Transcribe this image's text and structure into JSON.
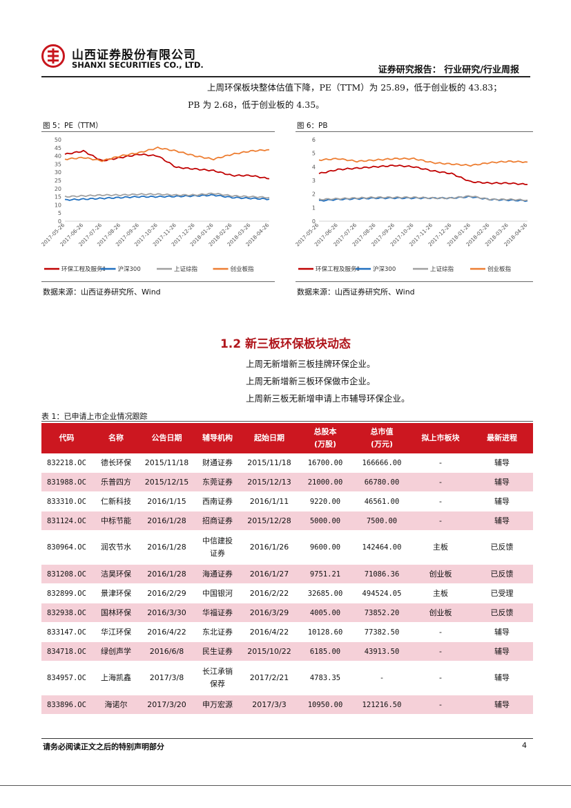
{
  "header": {
    "company_cn": "山西证券股份有限公司",
    "company_en": "SHANXI SECURITIES CO., LTD.",
    "report_type": "证券研究报告：  行业研究/行业周报",
    "logo_icon": "sxs-logo-icon",
    "brand_color": "#c8161d"
  },
  "intro": {
    "line1": "上周环保板块整体估值下降，PE（TTM）为 25.89，低于创业板的 43.83；",
    "line2": "PB 为 2.68，低于创业板的 4.35。"
  },
  "chart_data": [
    {
      "type": "line",
      "title": "图 5：PE（TTM）",
      "ylim": [
        0,
        50
      ],
      "yticks": [
        0,
        5,
        10,
        15,
        20,
        25,
        30,
        35,
        40,
        45,
        50
      ],
      "x": [
        "2017-05-26",
        "2017-06-26",
        "2017-07-26",
        "2017-08-26",
        "2017-09-26",
        "2017-10-26",
        "2017-11-26",
        "2017-12-26",
        "2018-01-26",
        "2018-02-26",
        "2018-03-26",
        "2018-04-26"
      ],
      "series": [
        {
          "name": "环保工程及服务Ⅱ",
          "color": "#c00000",
          "values": [
            41,
            43,
            37,
            39,
            41,
            40,
            33,
            32,
            31,
            28,
            28,
            26
          ]
        },
        {
          "name": "沪深300",
          "color": "#1f6fbf",
          "values": [
            13,
            13.5,
            14,
            14.5,
            15,
            15,
            15.2,
            15.5,
            16,
            14.5,
            14,
            13.5
          ]
        },
        {
          "name": "上证综指",
          "color": "#a0a0a0",
          "values": [
            15,
            15.5,
            16,
            16,
            16.5,
            16.5,
            16,
            16,
            17,
            15.5,
            15,
            14.5
          ]
        },
        {
          "name": "创业板指",
          "color": "#ed7d31",
          "values": [
            38,
            39,
            37,
            40,
            42,
            45,
            43,
            40,
            38,
            41,
            43,
            43.8
          ]
        }
      ],
      "legend_position": "bottom"
    },
    {
      "type": "line",
      "title": "图 6：PB",
      "ylim": [
        0,
        6
      ],
      "yticks": [
        0,
        1,
        2,
        3,
        4,
        5,
        6
      ],
      "x": [
        "2017-05-26",
        "2017-06-26",
        "2017-07-26",
        "2017-08-26",
        "2017-09-26",
        "2017-10-26",
        "2017-11-26",
        "2017-12-26",
        "2018-01-26",
        "2018-02-26",
        "2018-03-26",
        "2018-04-26"
      ],
      "series": [
        {
          "name": "环保工程及服务Ⅱ",
          "color": "#c00000",
          "values": [
            3.5,
            3.8,
            3.9,
            4.0,
            4.1,
            4.0,
            3.7,
            3.5,
            2.9,
            2.8,
            2.8,
            2.7
          ]
        },
        {
          "name": "沪深300",
          "color": "#1f6fbf",
          "values": [
            1.5,
            1.6,
            1.65,
            1.7,
            1.7,
            1.7,
            1.7,
            1.7,
            1.8,
            1.6,
            1.55,
            1.5
          ]
        },
        {
          "name": "上证综指",
          "color": "#a0a0a0",
          "values": [
            1.6,
            1.65,
            1.7,
            1.75,
            1.75,
            1.75,
            1.7,
            1.7,
            1.85,
            1.6,
            1.6,
            1.55
          ]
        },
        {
          "name": "创业板指",
          "color": "#ed7d31",
          "values": [
            4.5,
            4.6,
            4.4,
            4.5,
            4.6,
            4.6,
            4.3,
            4.2,
            4.1,
            4.3,
            4.4,
            4.35
          ]
        }
      ],
      "legend_position": "bottom"
    }
  ],
  "figures": {
    "pe_source": "数据来源：山西证券研究所、Wind",
    "pb_source": "数据来源：山西证券研究所、Wind"
  },
  "section": {
    "title": "1.2  新三板环保板块动态",
    "bullets": [
      "上周无新增新三板挂牌环保企业。",
      "上周无新增新三板环保做市企业。",
      "上周新三板无新增申请上市辅导环保企业。"
    ]
  },
  "table": {
    "title": "表 1：已申请上市企业情况跟踪",
    "header_color": "#cc1720",
    "stripe_color": "#f5d0d8",
    "columns": [
      "代码",
      "名称",
      "公告日期",
      "辅导机构",
      "起始日期",
      "总股本\n(万股)",
      "总市值\n(万元)",
      "拟上市板块",
      "最新进程"
    ],
    "rows": [
      [
        "832218.OC",
        "德长环保",
        "2015/11/18",
        "财通证券",
        "2015/11/18",
        "16700.00",
        "166666.00",
        "-",
        "辅导"
      ],
      [
        "831988.OC",
        "乐普四方",
        "2015/12/15",
        "东莞证券",
        "2015/12/13",
        "21000.00",
        "66780.00",
        "-",
        "辅导"
      ],
      [
        "833310.OC",
        "仁新科技",
        "2016/1/15",
        "西南证券",
        "2016/1/11",
        "9220.00",
        "46561.00",
        "-",
        "辅导"
      ],
      [
        "831124.OC",
        "中标节能",
        "2016/1/28",
        "招商证券",
        "2015/12/28",
        "5000.00",
        "7500.00",
        "-",
        "辅导"
      ],
      [
        "830964.OC",
        "润农节水",
        "2016/1/28",
        "中信建投\n证券",
        "2016/1/26",
        "9600.00",
        "142464.00",
        "主板",
        "已反馈"
      ],
      [
        "831208.OC",
        "洁昊环保",
        "2016/1/28",
        "海通证券",
        "2016/1/27",
        "9751.21",
        "71086.36",
        "创业板",
        "已反馈"
      ],
      [
        "832899.OC",
        "景津环保",
        "2016/2/29",
        "中国银河",
        "2016/2/22",
        "32685.00",
        "494524.05",
        "主板",
        "已受理"
      ],
      [
        "832938.OC",
        "国林环保",
        "2016/3/30",
        "华福证券",
        "2016/3/29",
        "4005.00",
        "73852.20",
        "创业板",
        "已反馈"
      ],
      [
        "833147.OC",
        "华江环保",
        "2016/4/22",
        "东北证券",
        "2016/4/22",
        "10128.60",
        "77382.50",
        "-",
        "辅导"
      ],
      [
        "834718.OC",
        "绿创声学",
        "2016/6/8",
        "民生证券",
        "2015/10/22",
        "6185.00",
        "43913.50",
        "-",
        "辅导"
      ],
      [
        "834957.OC",
        "上海凯鑫",
        "2017/3/8",
        "长江承销\n保荐",
        "2017/2/21",
        "4783.35",
        "-",
        "-",
        "辅导"
      ],
      [
        "833896.OC",
        "海诺尔",
        "2017/3/20",
        "申万宏源",
        "2017/3/3",
        "10950.00",
        "121216.50",
        "-",
        "辅导"
      ]
    ]
  },
  "footer": {
    "disclaimer": "请务必阅读正文之后的特别声明部分",
    "page": "4"
  }
}
